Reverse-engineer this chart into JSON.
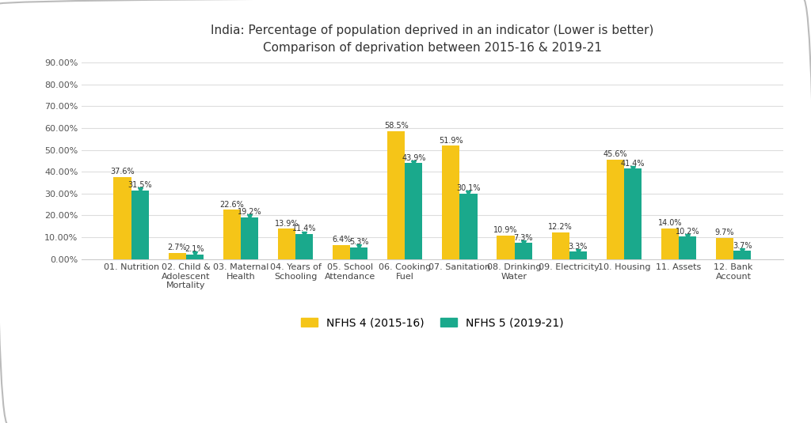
{
  "title_line1": "India: Percentage of population deprived in an indicator (Lower is better)",
  "title_line2": "Comparison of deprivation between 2015-16 & 2019-21",
  "categories": [
    "01. Nutrition",
    "02. Child &\nAdolescent\nMortality",
    "03. Maternal\nHealth",
    "04. Years of\nSchooling",
    "05. School\nAttendance",
    "06. Cooking\nFuel",
    "07. Sanitation",
    "08. Drinking\nWater",
    "09. Electricity",
    "10. Housing",
    "11. Assets",
    "12. Bank\nAccount"
  ],
  "nfhs4": [
    37.6,
    2.7,
    22.6,
    13.9,
    6.4,
    58.5,
    51.9,
    10.9,
    12.2,
    45.6,
    14.0,
    9.7
  ],
  "nfhs5": [
    31.5,
    2.1,
    19.2,
    11.4,
    5.3,
    43.9,
    30.1,
    7.3,
    3.3,
    41.4,
    10.2,
    3.7
  ],
  "color_nfhs4": "#F5C518",
  "color_nfhs5": "#1aA98C",
  "legend_nfhs4": "NFHS 4 (2015-16)",
  "legend_nfhs5": "NFHS 5 (2019-21)",
  "ylim": [
    0,
    90
  ],
  "yticks": [
    0,
    10,
    20,
    30,
    40,
    50,
    60,
    70,
    80,
    90
  ],
  "ytick_labels": [
    "0.00%",
    "10.00%",
    "20.00%",
    "30.00%",
    "40.00%",
    "50.00%",
    "60.00%",
    "70.00%",
    "80.00%",
    "90.00%"
  ],
  "background_color": "#FFFFFF",
  "bar_width": 0.32,
  "label_fontsize": 7.0,
  "tick_fontsize": 8.0,
  "title_fontsize": 11,
  "legend_fontsize": 10
}
